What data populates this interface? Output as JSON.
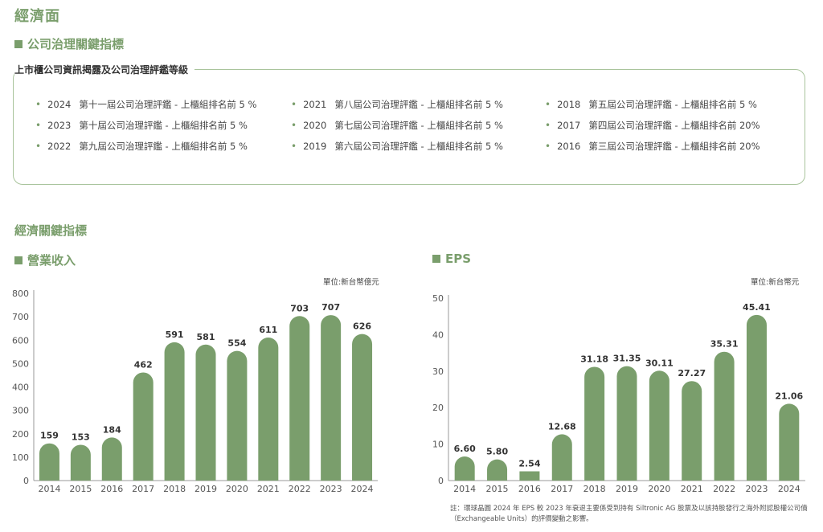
{
  "page_title": "經濟面",
  "governance": {
    "section_title": "公司治理關鍵指標",
    "box_label": "上市櫃公司資訊揭露及公司治理評鑑等級",
    "items": [
      {
        "year": "2024",
        "text": "第十一屆公司治理評鑑 - 上櫃組排名前 5 %"
      },
      {
        "year": "2023",
        "text": "第十屆公司治理評鑑 - 上櫃組排名前 5 %"
      },
      {
        "year": "2022",
        "text": "第九屆公司治理評鑑 - 上櫃組排名前 5 %"
      },
      {
        "year": "2021",
        "text": "第八屆公司治理評鑑 - 上櫃組排名前 5 %"
      },
      {
        "year": "2020",
        "text": "第七屆公司治理評鑑 - 上櫃組排名前 5 %"
      },
      {
        "year": "2019",
        "text": "第六屆公司治理評鑑 - 上櫃組排名前 5 %"
      },
      {
        "year": "2018",
        "text": "第五屆公司治理評鑑 - 上櫃組排名前 5 %"
      },
      {
        "year": "2017",
        "text": "第四屆公司治理評鑑 - 上櫃組排名前 20%"
      },
      {
        "year": "2016",
        "text": "第三屆公司治理評鑑 - 上櫃組排名前 20%"
      }
    ]
  },
  "economic": {
    "section_title": "經濟關鍵指標",
    "note": "註：環球晶圓 2024 年 EPS 較 2023 年衰退主要係受到持有 Siltronic AG 股票及以該持股發行之海外附認股權公司債（Exchangeable Units）的評價變動之影響。"
  },
  "colors": {
    "accent": "#7a9e6c",
    "bar": "#7a9e6c",
    "border": "#a9c49c"
  },
  "chart_data": [
    {
      "type": "bar",
      "title": "營業收入",
      "unit": "單位:新台幣億元",
      "categories": [
        "2014",
        "2015",
        "2016",
        "2017",
        "2018",
        "2019",
        "2020",
        "2021",
        "2022",
        "2023",
        "2024"
      ],
      "values": [
        159,
        153,
        184,
        462,
        591,
        581,
        554,
        611,
        703,
        707,
        626
      ],
      "labels": [
        "159",
        "153",
        "184",
        "462",
        "591",
        "581",
        "554",
        "611",
        "703",
        "707",
        "626"
      ],
      "ylim": [
        0,
        800
      ],
      "yticks": [
        0,
        100,
        200,
        300,
        400,
        500,
        600,
        700,
        800
      ],
      "grid": false
    },
    {
      "type": "bar",
      "title": "EPS",
      "unit": "單位:新台幣元",
      "categories": [
        "2014",
        "2015",
        "2016",
        "2017",
        "2018",
        "2019",
        "2020",
        "2021",
        "2022",
        "2023",
        "2024"
      ],
      "values": [
        6.6,
        5.8,
        2.54,
        12.68,
        31.18,
        31.35,
        30.11,
        27.27,
        35.31,
        45.41,
        21.06
      ],
      "labels": [
        "6.60",
        "5.80",
        "2.54",
        "12.68",
        "31.18",
        "31.35",
        "30.11",
        "27.27",
        "35.31",
        "45.41",
        "21.06"
      ],
      "ylim": [
        0,
        50
      ],
      "yticks": [
        0,
        10,
        20,
        30,
        40,
        50
      ],
      "grid": false
    }
  ]
}
